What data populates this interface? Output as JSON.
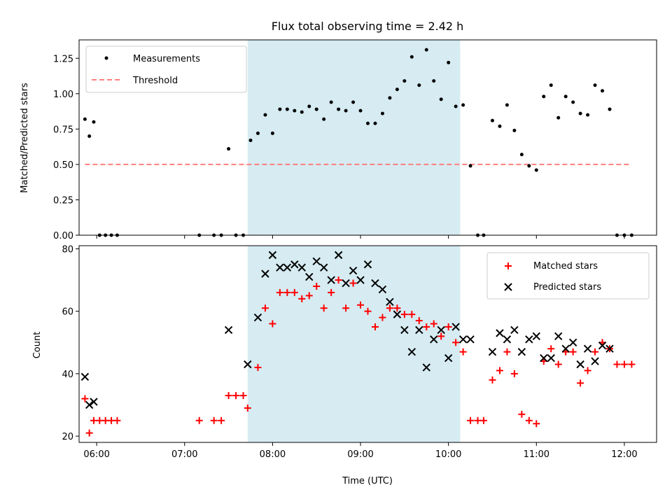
{
  "colors": {
    "shade": "#add8e6",
    "measurement": "#000000",
    "threshold": "#ff7f7f",
    "matched": "#ff0000",
    "predicted": "#000000"
  },
  "chart_data": [
    {
      "type": "scatter",
      "title": "Flux total observing time = 2.42 h",
      "xlabel": "",
      "ylabel": "Matched/Predicted stars",
      "xlim": [
        "05:48",
        "12:22"
      ],
      "ylim": [
        0,
        1.38
      ],
      "yticks": [
        "0.00",
        "0.25",
        "0.50",
        "0.75",
        "1.00",
        "1.25"
      ],
      "shaded_region": [
        "07:43",
        "10:08"
      ],
      "legend": {
        "placement": "top-left",
        "entries": [
          "Measurements",
          "Threshold"
        ]
      },
      "series": [
        {
          "name": "Measurements",
          "marker": "dot",
          "points": [
            [
              "05:52",
              0.82
            ],
            [
              "05:55",
              0.7
            ],
            [
              "05:58",
              0.8
            ],
            [
              "06:02",
              0.0
            ],
            [
              "06:06",
              0.0
            ],
            [
              "06:10",
              0.0
            ],
            [
              "06:14",
              0.0
            ],
            [
              "07:10",
              0.0
            ],
            [
              "07:20",
              0.0
            ],
            [
              "07:25",
              0.0
            ],
            [
              "07:30",
              0.61
            ],
            [
              "07:35",
              0.0
            ],
            [
              "07:40",
              0.0
            ],
            [
              "07:45",
              0.67
            ],
            [
              "07:50",
              0.72
            ],
            [
              "07:55",
              0.85
            ],
            [
              "08:00",
              0.72
            ],
            [
              "08:05",
              0.89
            ],
            [
              "08:10",
              0.89
            ],
            [
              "08:15",
              0.88
            ],
            [
              "08:20",
              0.87
            ],
            [
              "08:25",
              0.91
            ],
            [
              "08:30",
              0.89
            ],
            [
              "08:35",
              0.82
            ],
            [
              "08:40",
              0.94
            ],
            [
              "08:45",
              0.89
            ],
            [
              "08:50",
              0.88
            ],
            [
              "08:55",
              0.94
            ],
            [
              "09:00",
              0.88
            ],
            [
              "09:05",
              0.79
            ],
            [
              "09:10",
              0.79
            ],
            [
              "09:15",
              0.86
            ],
            [
              "09:20",
              0.97
            ],
            [
              "09:25",
              1.03
            ],
            [
              "09:30",
              1.09
            ],
            [
              "09:35",
              1.26
            ],
            [
              "09:40",
              1.06
            ],
            [
              "09:45",
              1.31
            ],
            [
              "09:50",
              1.09
            ],
            [
              "09:55",
              0.96
            ],
            [
              "10:00",
              1.22
            ],
            [
              "10:05",
              0.91
            ],
            [
              "10:10",
              0.92
            ],
            [
              "10:15",
              0.49
            ],
            [
              "10:20",
              0.0
            ],
            [
              "10:24",
              0.0
            ],
            [
              "10:30",
              0.81
            ],
            [
              "10:35",
              0.77
            ],
            [
              "10:40",
              0.92
            ],
            [
              "10:45",
              0.74
            ],
            [
              "10:50",
              0.57
            ],
            [
              "10:55",
              0.49
            ],
            [
              "11:00",
              0.46
            ],
            [
              "11:05",
              0.98
            ],
            [
              "11:10",
              1.06
            ],
            [
              "11:15",
              0.83
            ],
            [
              "11:20",
              0.98
            ],
            [
              "11:25",
              0.94
            ],
            [
              "11:30",
              0.86
            ],
            [
              "11:35",
              0.85
            ],
            [
              "11:40",
              1.06
            ],
            [
              "11:45",
              1.02
            ],
            [
              "11:50",
              0.89
            ],
            [
              "11:55",
              0.0
            ],
            [
              "12:00",
              0.0
            ],
            [
              "12:05",
              0.0
            ]
          ]
        },
        {
          "name": "Threshold",
          "marker": "dashed-line",
          "points": [
            [
              "05:52",
              0.5
            ],
            [
              "12:05",
              0.5
            ]
          ]
        }
      ]
    },
    {
      "type": "scatter",
      "title": "",
      "xlabel": "Time (UTC)",
      "ylabel": "Count",
      "xlim": [
        "05:48",
        "12:22"
      ],
      "ylim": [
        18,
        81
      ],
      "yticks": [
        "20",
        "40",
        "60",
        "80"
      ],
      "xticks": [
        "06:00",
        "07:00",
        "08:00",
        "09:00",
        "10:00",
        "11:00",
        "12:00"
      ],
      "shaded_region": [
        "07:43",
        "10:08"
      ],
      "legend": {
        "placement": "top-right",
        "entries": [
          "Matched stars",
          "Predicted stars"
        ]
      },
      "series": [
        {
          "name": "Matched stars",
          "marker": "plus",
          "points": [
            [
              "05:52",
              32
            ],
            [
              "05:55",
              21
            ],
            [
              "05:58",
              25
            ],
            [
              "06:02",
              25
            ],
            [
              "06:06",
              25
            ],
            [
              "06:10",
              25
            ],
            [
              "06:14",
              25
            ],
            [
              "07:10",
              25
            ],
            [
              "07:20",
              25
            ],
            [
              "07:25",
              25
            ],
            [
              "07:30",
              33
            ],
            [
              "07:35",
              33
            ],
            [
              "07:40",
              33
            ],
            [
              "07:43",
              29
            ],
            [
              "07:50",
              42
            ],
            [
              "07:55",
              61
            ],
            [
              "08:00",
              56
            ],
            [
              "08:05",
              66
            ],
            [
              "08:10",
              66
            ],
            [
              "08:15",
              66
            ],
            [
              "08:20",
              64
            ],
            [
              "08:25",
              65
            ],
            [
              "08:30",
              68
            ],
            [
              "08:35",
              61
            ],
            [
              "08:40",
              66
            ],
            [
              "08:45",
              70
            ],
            [
              "08:50",
              61
            ],
            [
              "08:55",
              69
            ],
            [
              "09:00",
              62
            ],
            [
              "09:05",
              60
            ],
            [
              "09:10",
              55
            ],
            [
              "09:15",
              58
            ],
            [
              "09:20",
              61
            ],
            [
              "09:25",
              61
            ],
            [
              "09:30",
              59
            ],
            [
              "09:35",
              59
            ],
            [
              "09:40",
              57
            ],
            [
              "09:45",
              55
            ],
            [
              "09:50",
              56
            ],
            [
              "09:55",
              52
            ],
            [
              "10:00",
              55
            ],
            [
              "10:05",
              50
            ],
            [
              "10:10",
              47
            ],
            [
              "10:15",
              25
            ],
            [
              "10:20",
              25
            ],
            [
              "10:24",
              25
            ],
            [
              "10:30",
              38
            ],
            [
              "10:35",
              41
            ],
            [
              "10:40",
              47
            ],
            [
              "10:45",
              40
            ],
            [
              "10:50",
              27
            ],
            [
              "10:55",
              25
            ],
            [
              "11:00",
              24
            ],
            [
              "11:05",
              44
            ],
            [
              "11:10",
              48
            ],
            [
              "11:15",
              43
            ],
            [
              "11:20",
              47
            ],
            [
              "11:25",
              47
            ],
            [
              "11:30",
              37
            ],
            [
              "11:35",
              41
            ],
            [
              "11:40",
              47
            ],
            [
              "11:45",
              50
            ],
            [
              "11:50",
              48
            ],
            [
              "11:55",
              43
            ],
            [
              "12:00",
              43
            ],
            [
              "12:05",
              43
            ]
          ]
        },
        {
          "name": "Predicted stars",
          "marker": "x",
          "points": [
            [
              "05:52",
              39
            ],
            [
              "05:55",
              30
            ],
            [
              "05:58",
              31
            ],
            [
              "07:30",
              54
            ],
            [
              "07:43",
              43
            ],
            [
              "07:50",
              58
            ],
            [
              "07:55",
              72
            ],
            [
              "08:00",
              78
            ],
            [
              "08:05",
              74
            ],
            [
              "08:10",
              74
            ],
            [
              "08:15",
              75
            ],
            [
              "08:20",
              74
            ],
            [
              "08:25",
              71
            ],
            [
              "08:30",
              76
            ],
            [
              "08:35",
              74
            ],
            [
              "08:40",
              70
            ],
            [
              "08:45",
              78
            ],
            [
              "08:50",
              69
            ],
            [
              "08:55",
              73
            ],
            [
              "09:00",
              70
            ],
            [
              "09:05",
              75
            ],
            [
              "09:10",
              69
            ],
            [
              "09:15",
              67
            ],
            [
              "09:20",
              63
            ],
            [
              "09:25",
              59
            ],
            [
              "09:30",
              54
            ],
            [
              "09:35",
              47
            ],
            [
              "09:40",
              54
            ],
            [
              "09:45",
              42
            ],
            [
              "09:50",
              51
            ],
            [
              "09:55",
              54
            ],
            [
              "10:00",
              45
            ],
            [
              "10:05",
              55
            ],
            [
              "10:10",
              51
            ],
            [
              "10:15",
              51
            ],
            [
              "10:30",
              47
            ],
            [
              "10:35",
              53
            ],
            [
              "10:40",
              51
            ],
            [
              "10:45",
              54
            ],
            [
              "10:50",
              47
            ],
            [
              "10:55",
              51
            ],
            [
              "11:00",
              52
            ],
            [
              "11:05",
              45
            ],
            [
              "11:10",
              45
            ],
            [
              "11:15",
              52
            ],
            [
              "11:20",
              48
            ],
            [
              "11:25",
              50
            ],
            [
              "11:30",
              43
            ],
            [
              "11:35",
              48
            ],
            [
              "11:40",
              44
            ],
            [
              "11:45",
              49
            ],
            [
              "11:50",
              48
            ]
          ]
        }
      ]
    }
  ]
}
